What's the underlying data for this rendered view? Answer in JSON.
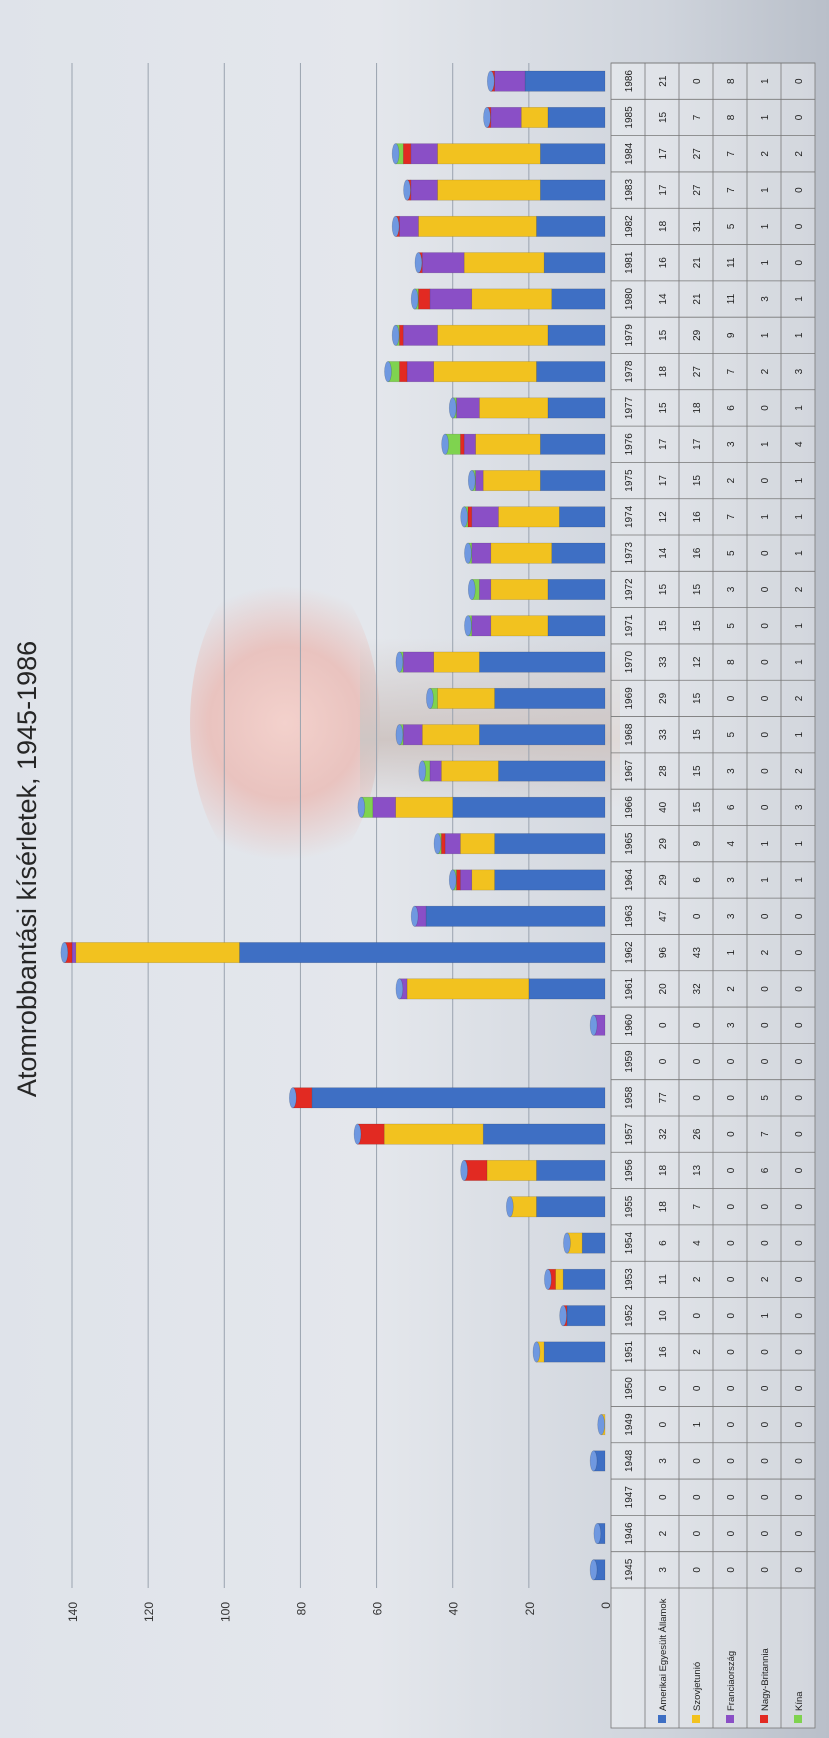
{
  "title": "Atomrobbantási kísérletek, 1945-1986",
  "chart_data": {
    "type": "bar",
    "stacked": true,
    "title": "Atomrobbantási kísérletek, 1945-1986",
    "categories": [
      "1945",
      "1946",
      "1947",
      "1948",
      "1949",
      "1950",
      "1951",
      "1952",
      "1953",
      "1954",
      "1955",
      "1956",
      "1957",
      "1958",
      "1959",
      "1960",
      "1961",
      "1962",
      "1963",
      "1964",
      "1965",
      "1966",
      "1967",
      "1968",
      "1969",
      "1970",
      "1971",
      "1972",
      "1973",
      "1974",
      "1975",
      "1976",
      "1977",
      "1978",
      "1979",
      "1980",
      "1981",
      "1982",
      "1983",
      "1984",
      "1985",
      "1986"
    ],
    "series": [
      {
        "name": "Amerikai Egyesült Államok",
        "color": "#3e6fc4",
        "values": [
          3,
          2,
          0,
          3,
          0,
          0,
          16,
          10,
          11,
          6,
          18,
          18,
          32,
          77,
          0,
          0,
          20,
          96,
          47,
          29,
          29,
          40,
          28,
          33,
          29,
          33,
          15,
          15,
          14,
          12,
          17,
          17,
          15,
          18,
          15,
          14,
          16,
          18,
          17,
          17,
          15,
          21
        ]
      },
      {
        "name": "Szovjetunió",
        "color": "#f2c21f",
        "values": [
          0,
          0,
          0,
          0,
          1,
          0,
          2,
          0,
          2,
          4,
          7,
          13,
          26,
          0,
          0,
          0,
          32,
          43,
          0,
          6,
          9,
          15,
          15,
          15,
          15,
          12,
          15,
          15,
          16,
          16,
          15,
          17,
          18,
          27,
          29,
          21,
          21,
          31,
          27,
          27,
          7,
          0
        ]
      },
      {
        "name": "Franciaország",
        "color": "#8a4fc6",
        "values": [
          0,
          0,
          0,
          0,
          0,
          0,
          0,
          0,
          0,
          0,
          0,
          0,
          0,
          0,
          0,
          3,
          2,
          1,
          3,
          3,
          4,
          6,
          3,
          5,
          0,
          8,
          5,
          3,
          5,
          7,
          2,
          3,
          6,
          7,
          9,
          11,
          11,
          5,
          7,
          7,
          8,
          8
        ]
      },
      {
        "name": "Nagy-Britannia",
        "color": "#e22a22",
        "values": [
          0,
          0,
          0,
          0,
          0,
          0,
          0,
          1,
          2,
          0,
          0,
          6,
          7,
          5,
          0,
          0,
          0,
          2,
          0,
          1,
          1,
          0,
          0,
          0,
          0,
          0,
          0,
          0,
          0,
          1,
          0,
          1,
          0,
          2,
          1,
          3,
          1,
          1,
          1,
          2,
          1,
          1
        ]
      },
      {
        "name": "Kína",
        "color": "#7fd34f",
        "values": [
          0,
          0,
          0,
          0,
          0,
          0,
          0,
          0,
          0,
          0,
          0,
          0,
          0,
          0,
          0,
          0,
          0,
          0,
          0,
          1,
          1,
          3,
          2,
          1,
          2,
          1,
          1,
          2,
          1,
          1,
          1,
          4,
          1,
          3,
          1,
          1,
          0,
          0,
          0,
          2,
          0,
          0
        ]
      }
    ],
    "ylim": [
      0,
      140
    ],
    "yticks": [
      0,
      20,
      40,
      60,
      80,
      100,
      120,
      140
    ],
    "grid": true,
    "legend": "data table"
  }
}
